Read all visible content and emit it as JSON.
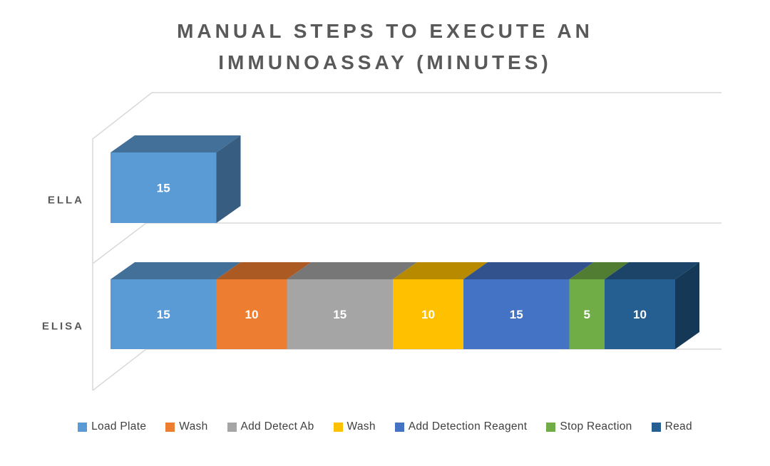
{
  "chart_data": {
    "type": "bar",
    "subtype": "3d-horizontal-stacked",
    "title": "MANUAL STEPS TO EXECUTE AN IMMUNOASSAY (MINUTES)",
    "title_lines": [
      "MANUAL STEPS TO EXECUTE AN",
      "IMMUNOASSAY (MINUTES)"
    ],
    "categories": [
      "ELLA",
      "ELISA"
    ],
    "series": [
      {
        "name": "Load Plate",
        "color": "#5B9BD5",
        "values": [
          15,
          15
        ]
      },
      {
        "name": "Wash",
        "color": "#ED7D31",
        "values": [
          null,
          10
        ]
      },
      {
        "name": "Add Detect Ab",
        "color": "#A5A5A5",
        "values": [
          null,
          15
        ]
      },
      {
        "name": "Wash",
        "color": "#FFC000",
        "values": [
          null,
          10
        ]
      },
      {
        "name": "Add Detection Reagent",
        "color": "#4472C4",
        "values": [
          null,
          15
        ]
      },
      {
        "name": "Stop Reaction",
        "color": "#70AD47",
        "values": [
          null,
          5
        ]
      },
      {
        "name": "Read",
        "color": "#255E91",
        "values": [
          null,
          10
        ]
      }
    ],
    "data_labels_visible": true,
    "data_label_color": "#FFFFFF",
    "value_axis_visible": false,
    "legend_position": "bottom",
    "title_color": "#595959",
    "category_label_color": "#595959",
    "legend_text_color": "#404040",
    "gridline_color": "#D9D9D9",
    "background": "#FFFFFF"
  }
}
